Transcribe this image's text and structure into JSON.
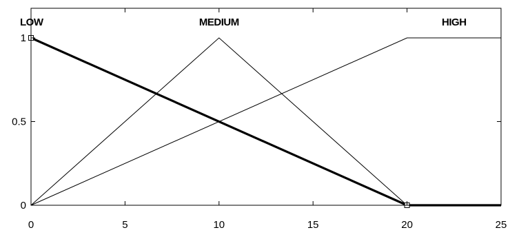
{
  "chart_data": {
    "type": "line",
    "title": "",
    "xlabel": "",
    "ylabel": "",
    "xlim": [
      0,
      25
    ],
    "ylim": [
      0,
      1
    ],
    "xticks": [
      0,
      5,
      10,
      15,
      20,
      25
    ],
    "xtick_labels": [
      "0",
      "5",
      "10",
      "15",
      "20",
      "25"
    ],
    "yticks": [
      0,
      0.5,
      1
    ],
    "ytick_labels": [
      "0",
      "0.5",
      "1"
    ],
    "grid": false,
    "legend": "none",
    "series": [
      {
        "name": "LOW",
        "highlighted": true,
        "x": [
          0,
          20,
          25
        ],
        "y": [
          1,
          0,
          0
        ],
        "label_at": [
          0,
          1
        ]
      },
      {
        "name": "MEDIUM",
        "highlighted": false,
        "x": [
          0,
          10,
          20
        ],
        "y": [
          0,
          1,
          0
        ],
        "label_at": [
          10,
          1
        ]
      },
      {
        "name": "HIGH",
        "highlighted": false,
        "x": [
          0,
          20,
          25
        ],
        "y": [
          0,
          1,
          1
        ],
        "label_at": [
          22.5,
          1
        ]
      }
    ],
    "selection_handles": [
      {
        "x": 0,
        "y": 1
      },
      {
        "x": 20,
        "y": 0
      }
    ],
    "colors": {
      "axis": "#000000",
      "line": "#000000",
      "background": "#ffffff"
    }
  }
}
